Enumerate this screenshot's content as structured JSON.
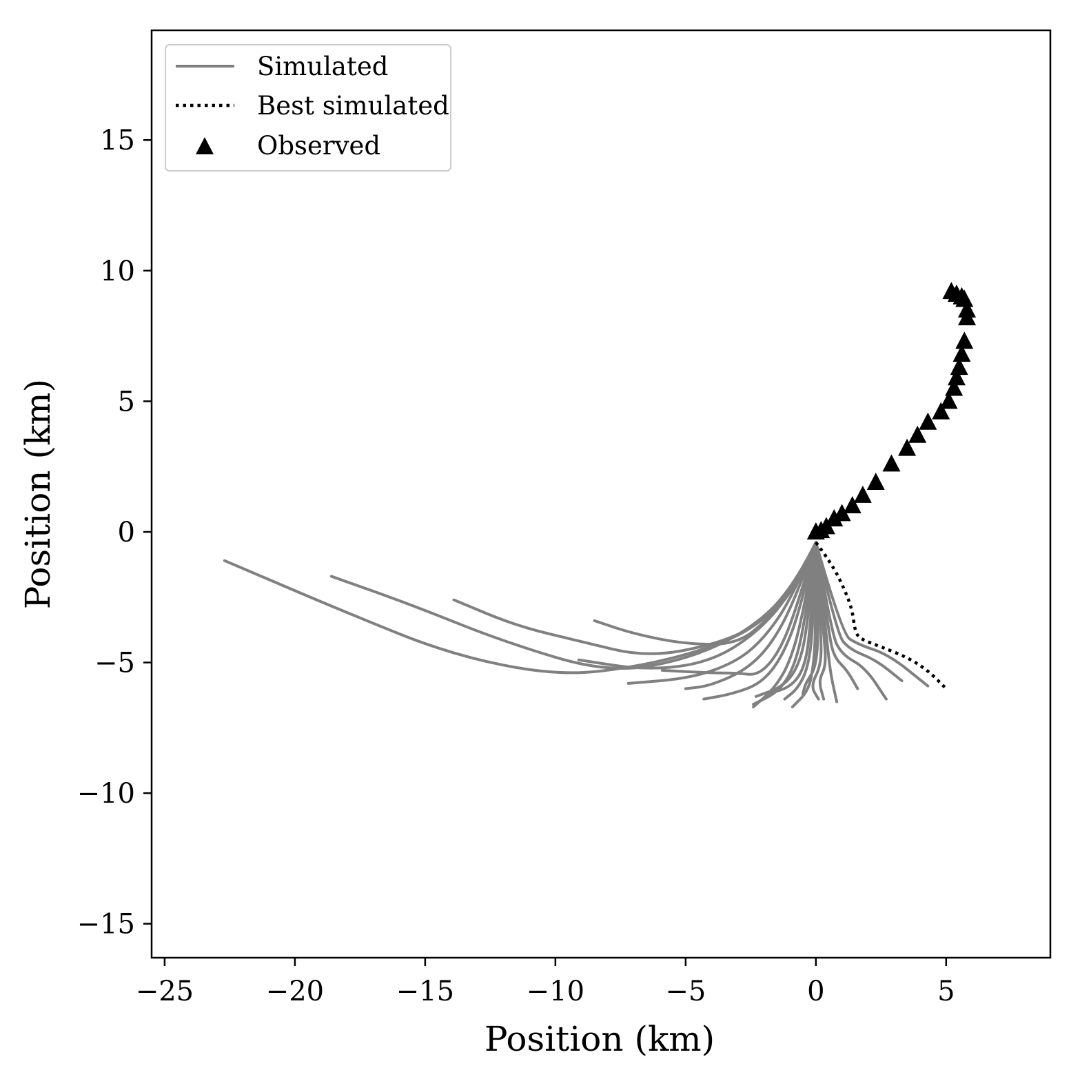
{
  "chart_data": {
    "type": "line",
    "xlabel": "Position (km)",
    "ylabel": "Position (km)",
    "xlim": [
      -25.5,
      9.0
    ],
    "ylim": [
      -16.3,
      19.2
    ],
    "x_ticks": [
      -25,
      -20,
      -15,
      -10,
      -5,
      0,
      5
    ],
    "y_ticks": [
      -15,
      -10,
      -5,
      0,
      5,
      10,
      15
    ],
    "x_tick_labels": [
      "−25",
      "−20",
      "−15",
      "−10",
      "−5",
      "0",
      "5"
    ],
    "y_tick_labels": [
      "−15",
      "−10",
      "−5",
      "0",
      "5",
      "10",
      "15"
    ],
    "grid": false,
    "legend": {
      "position": "top-left",
      "entries": [
        {
          "label": "Simulated",
          "style": "solid",
          "color": "#808080"
        },
        {
          "label": "Best simulated",
          "style": "dotted",
          "color": "#000000"
        },
        {
          "label": "Observed",
          "style": "triangle-marker",
          "color": "#000000"
        }
      ]
    },
    "colors": {
      "simulated": "#808080",
      "best": "#000000",
      "observed": "#000000"
    },
    "simulated": [
      [
        [
          0,
          -0.4
        ],
        [
          -0.8,
          -2
        ],
        [
          -2.2,
          -3.6
        ],
        [
          -4.2,
          -4.5
        ],
        [
          -7,
          -5.2
        ],
        [
          -10,
          -5.5
        ],
        [
          -14,
          -4.7
        ],
        [
          -18,
          -3.1
        ],
        [
          -22.7,
          -1.1
        ]
      ],
      [
        [
          0,
          -0.4
        ],
        [
          -0.9,
          -2.2
        ],
        [
          -2.6,
          -3.8
        ],
        [
          -5,
          -4.9
        ],
        [
          -8,
          -5.4
        ],
        [
          -12,
          -4.2
        ],
        [
          -15.5,
          -2.8
        ],
        [
          -18.6,
          -1.7
        ]
      ],
      [
        [
          0,
          -0.4
        ],
        [
          -0.8,
          -2.1
        ],
        [
          -2.1,
          -3.5
        ],
        [
          -3.8,
          -4.3
        ],
        [
          -6.5,
          -4.8
        ],
        [
          -9,
          -4.2
        ],
        [
          -11.5,
          -3.6
        ],
        [
          -13.9,
          -2.6
        ]
      ],
      [
        [
          0,
          -0.4
        ],
        [
          -0.7,
          -2
        ],
        [
          -1.8,
          -3.3
        ],
        [
          -3,
          -4.3
        ],
        [
          -5,
          -4.3
        ],
        [
          -7,
          -3.9
        ],
        [
          -8.5,
          -3.4
        ]
      ],
      [
        [
          0,
          -0.4
        ],
        [
          -0.9,
          -2.3
        ],
        [
          -2.3,
          -3.9
        ],
        [
          -4.1,
          -5.0
        ],
        [
          -6.5,
          -5.3
        ],
        [
          -9.1,
          -4.9
        ]
      ],
      [
        [
          0,
          -0.4
        ],
        [
          -0.9,
          -2.5
        ],
        [
          -2,
          -4.1
        ],
        [
          -3.1,
          -5.0
        ],
        [
          -4.8,
          -5.6
        ],
        [
          -7.2,
          -5.8
        ]
      ],
      [
        [
          0,
          -0.4
        ],
        [
          -0.8,
          -2.6
        ],
        [
          -1.7,
          -4.3
        ],
        [
          -2.7,
          -5.3
        ],
        [
          -4.1,
          -5.9
        ],
        [
          -5.0,
          -6.0
        ]
      ],
      [
        [
          0,
          -0.4
        ],
        [
          -0.7,
          -2.8
        ],
        [
          -1.4,
          -4.6
        ],
        [
          -2.2,
          -5.5
        ],
        [
          -3.0,
          -5.4
        ],
        [
          -4.0,
          -5.4
        ],
        [
          -5.9,
          -5.3
        ]
      ],
      [
        [
          0,
          -0.4
        ],
        [
          -0.6,
          -3
        ],
        [
          -1.3,
          -4.8
        ],
        [
          -2.1,
          -5.8
        ],
        [
          -3.2,
          -6.2
        ],
        [
          -4.3,
          -6.4
        ]
      ],
      [
        [
          0,
          -0.4
        ],
        [
          -0.5,
          -3.2
        ],
        [
          -1.0,
          -5.0
        ],
        [
          -1.6,
          -6.0
        ],
        [
          -2.4,
          -6.7
        ]
      ],
      [
        [
          0,
          -0.4
        ],
        [
          -0.4,
          -3.3
        ],
        [
          -0.8,
          -5.1
        ],
        [
          -1.4,
          -6.1
        ],
        [
          -2.4,
          -6.6
        ]
      ],
      [
        [
          0,
          -0.4
        ],
        [
          -0.3,
          -3.4
        ],
        [
          -0.6,
          -5.0
        ],
        [
          -1.2,
          -5.9
        ],
        [
          -2.3,
          -6.3
        ]
      ],
      [
        [
          0,
          -0.4
        ],
        [
          -0.2,
          -3.5
        ],
        [
          -0.4,
          -5.1
        ],
        [
          -0.9,
          -5.9
        ],
        [
          -1.8,
          -6.2
        ]
      ],
      [
        [
          0,
          -0.4
        ],
        [
          -0.1,
          -3.6
        ],
        [
          -0.3,
          -5.2
        ],
        [
          -0.7,
          -6.0
        ],
        [
          -1.2,
          -6.4
        ]
      ],
      [
        [
          0,
          -0.4
        ],
        [
          0,
          -3.7
        ],
        [
          -0.1,
          -5.2
        ],
        [
          -0.3,
          -6.1
        ],
        [
          -0.9,
          -6.7
        ]
      ],
      [
        [
          0,
          -0.4
        ],
        [
          0.1,
          -3.8
        ],
        [
          0,
          -5.2
        ],
        [
          -0.4,
          -5.8
        ],
        [
          -0.5,
          -6.2
        ]
      ],
      [
        [
          0,
          -0.4
        ],
        [
          0.2,
          -3.9
        ],
        [
          0.2,
          -5.1
        ],
        [
          -0.2,
          -5.9
        ],
        [
          0.1,
          -6.4
        ]
      ],
      [
        [
          0,
          -0.4
        ],
        [
          0.3,
          -3.9
        ],
        [
          0.4,
          -5.1
        ],
        [
          0.1,
          -5.7
        ],
        [
          0.3,
          -6.4
        ]
      ],
      [
        [
          0,
          -0.4
        ],
        [
          0.4,
          -3.9
        ],
        [
          0.5,
          -4.9
        ],
        [
          0.6,
          -5.6
        ],
        [
          0.8,
          -6.5
        ]
      ],
      [
        [
          0,
          -0.4
        ],
        [
          0.5,
          -3.9
        ],
        [
          0.7,
          -4.8
        ],
        [
          1.2,
          -5.3
        ],
        [
          1.6,
          -6.0
        ]
      ],
      [
        [
          0,
          -0.4
        ],
        [
          0.6,
          -3.9
        ],
        [
          1.0,
          -4.7
        ],
        [
          1.9,
          -5.2
        ],
        [
          2.7,
          -6.4
        ]
      ],
      [
        [
          0,
          -0.4
        ],
        [
          0.8,
          -3.9
        ],
        [
          1.3,
          -4.5
        ],
        [
          2.3,
          -4.9
        ],
        [
          3.3,
          -5.7
        ]
      ],
      [
        [
          0,
          -0.4
        ],
        [
          1.0,
          -3.9
        ],
        [
          1.6,
          -4.3
        ],
        [
          2.8,
          -4.7
        ],
        [
          4.3,
          -5.9
        ]
      ]
    ],
    "best_simulated": [
      [
        0,
        -0.4
      ],
      [
        0.6,
        -1.2
      ],
      [
        1.1,
        -2.2
      ],
      [
        1.4,
        -3.0
      ],
      [
        1.5,
        -3.8
      ],
      [
        1.7,
        -4.1
      ],
      [
        2.5,
        -4.4
      ],
      [
        3.5,
        -4.8
      ],
      [
        4.3,
        -5.3
      ],
      [
        5.0,
        -6.0
      ]
    ],
    "observed": [
      [
        0,
        0
      ],
      [
        0.2,
        0.05
      ],
      [
        0.4,
        0.2
      ],
      [
        0.7,
        0.5
      ],
      [
        1.0,
        0.7
      ],
      [
        1.4,
        1.0
      ],
      [
        1.8,
        1.4
      ],
      [
        2.3,
        1.9
      ],
      [
        2.9,
        2.6
      ],
      [
        3.5,
        3.2
      ],
      [
        3.9,
        3.7
      ],
      [
        4.3,
        4.2
      ],
      [
        4.8,
        4.6
      ],
      [
        5.1,
        5.0
      ],
      [
        5.3,
        5.5
      ],
      [
        5.4,
        5.9
      ],
      [
        5.5,
        6.3
      ],
      [
        5.6,
        6.8
      ],
      [
        5.7,
        7.3
      ],
      [
        5.8,
        8.2
      ],
      [
        5.8,
        8.5
      ],
      [
        5.7,
        8.9
      ],
      [
        5.6,
        9.0
      ],
      [
        5.4,
        9.1
      ],
      [
        5.2,
        9.2
      ]
    ]
  }
}
